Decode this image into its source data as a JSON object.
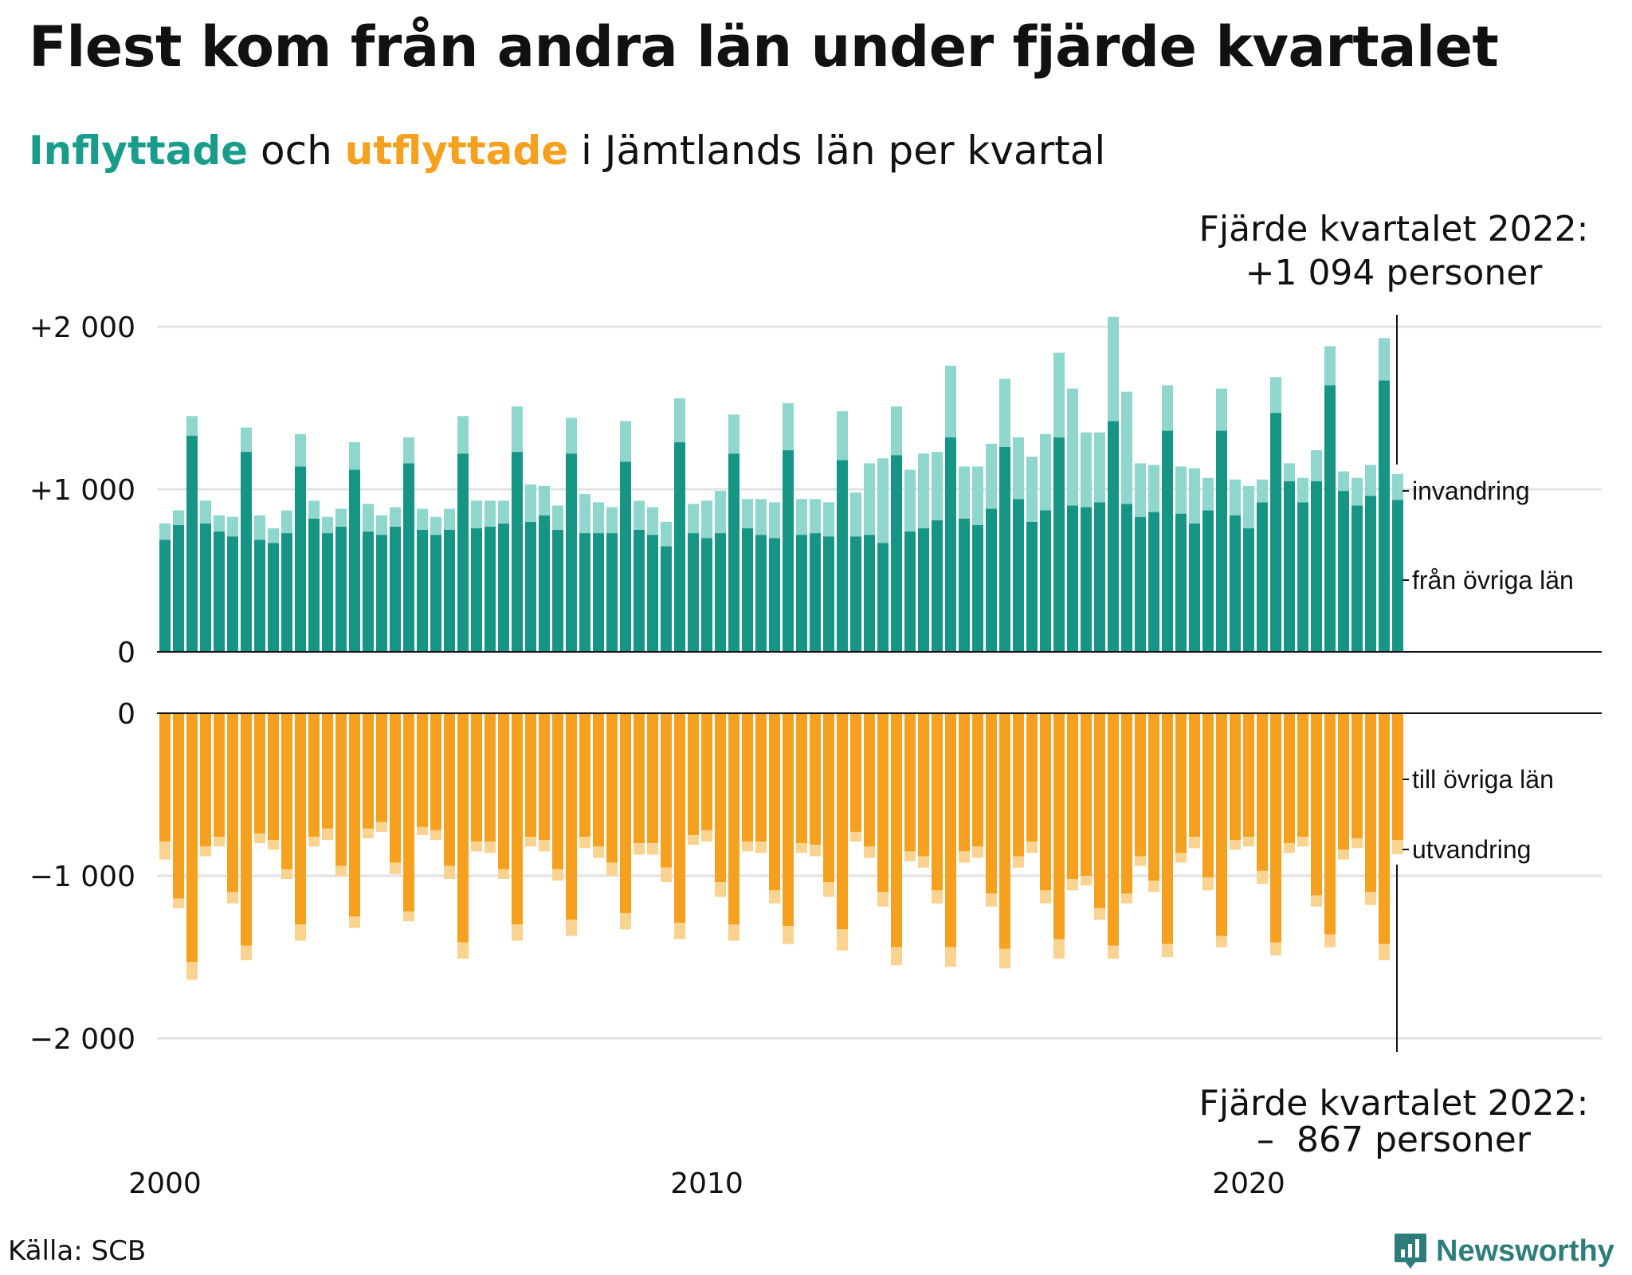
{
  "title": "Flest kom från andra län under fjärde kvartalet",
  "subtitle": {
    "part1": "Inflyttade",
    "part2": " och ",
    "part3": "utflyttade",
    "part4": " i Jämtlands län per kvartal"
  },
  "colors": {
    "in_dark": "#169585",
    "in_light": "#8fd6cc",
    "out_dark": "#f5a01f",
    "out_light": "#fbd391",
    "grid": "#e2e2e2",
    "axis": "#111111",
    "brand": "#2e7d7a"
  },
  "annotations": {
    "top_line1": "Fjärde kvartalet 2022:",
    "top_line2": "+1 094 personer",
    "bottom_line1": "Fjärde kvartalet 2022:",
    "bottom_line2": "–  867 personer"
  },
  "segment_labels": {
    "invandring": "invandring",
    "fran_ovriga": "från övriga län",
    "till_ovriga": "till övriga län",
    "utvandring": "utvandring"
  },
  "source": "Källa: SCB",
  "brand": {
    "name": "Newsworthy",
    "logo_icon": "newsworthy-bar-chart-icon"
  },
  "chart_data": {
    "type": "bar",
    "stacked": true,
    "period": "quarterly",
    "start": "2000 Q1",
    "end": "2022 Q4",
    "x_ticks": [
      "2000",
      "2010",
      "2020"
    ],
    "top_panel": {
      "y_ticks": [
        "+2 000",
        "+1 000",
        "0"
      ],
      "ylim": [
        0,
        2000
      ],
      "series": [
        {
          "name": "från övriga län",
          "values": [
            690,
            780,
            1330,
            790,
            740,
            710,
            1230,
            690,
            670,
            730,
            1140,
            820,
            730,
            770,
            1120,
            740,
            720,
            770,
            1160,
            750,
            720,
            750,
            1220,
            760,
            770,
            790,
            1230,
            800,
            840,
            750,
            1220,
            730,
            730,
            730,
            1170,
            750,
            720,
            650,
            1290,
            730,
            700,
            730,
            1220,
            760,
            720,
            700,
            1240,
            720,
            730,
            710,
            1180,
            710,
            720,
            670,
            1210,
            740,
            760,
            810,
            1320,
            820,
            780,
            880,
            1260,
            940,
            800,
            870,
            1320,
            900,
            890,
            920,
            1420,
            910,
            830,
            860,
            1360,
            850,
            790,
            870,
            1360,
            840,
            760,
            920,
            1470,
            1050,
            920,
            1050,
            1640,
            990,
            900,
            960,
            1670,
            934
          ]
        },
        {
          "name": "invandring",
          "values": [
            100,
            90,
            120,
            140,
            100,
            120,
            150,
            150,
            90,
            140,
            200,
            110,
            100,
            110,
            170,
            170,
            120,
            120,
            160,
            130,
            110,
            130,
            230,
            170,
            160,
            140,
            280,
            230,
            180,
            150,
            220,
            240,
            190,
            160,
            250,
            180,
            170,
            150,
            270,
            180,
            230,
            260,
            240,
            180,
            220,
            220,
            290,
            220,
            210,
            210,
            300,
            270,
            440,
            520,
            300,
            380,
            460,
            420,
            440,
            320,
            360,
            400,
            420,
            380,
            400,
            470,
            520,
            720,
            460,
            430,
            640,
            690,
            330,
            290,
            280,
            290,
            340,
            200,
            260,
            220,
            260,
            140,
            220,
            110,
            150,
            190,
            240,
            120,
            170,
            190,
            260,
            160
          ]
        }
      ]
    },
    "bottom_panel": {
      "y_ticks": [
        "0",
        "−1 000",
        "−2 000"
      ],
      "ylim": [
        -2000,
        0
      ],
      "series": [
        {
          "name": "till övriga län",
          "values": [
            -790,
            -1140,
            -1530,
            -820,
            -760,
            -1100,
            -1430,
            -740,
            -780,
            -960,
            -1300,
            -760,
            -710,
            -940,
            -1250,
            -710,
            -670,
            -920,
            -1220,
            -700,
            -720,
            -940,
            -1410,
            -790,
            -790,
            -960,
            -1300,
            -760,
            -780,
            -960,
            -1270,
            -760,
            -820,
            -920,
            -1230,
            -800,
            -800,
            -950,
            -1290,
            -750,
            -720,
            -1040,
            -1300,
            -790,
            -790,
            -1090,
            -1310,
            -800,
            -810,
            -1040,
            -1330,
            -730,
            -820,
            -1100,
            -1440,
            -850,
            -880,
            -1090,
            -1440,
            -850,
            -820,
            -1110,
            -1450,
            -880,
            -790,
            -1090,
            -1390,
            -1020,
            -1000,
            -1200,
            -1430,
            -1110,
            -880,
            -1030,
            -1420,
            -860,
            -760,
            -1010,
            -1370,
            -780,
            -760,
            -970,
            -1410,
            -800,
            -760,
            -1120,
            -1360,
            -840,
            -770,
            -1100,
            -1420,
            -780
          ]
        },
        {
          "name": "utvandring",
          "values": [
            -110,
            -60,
            -110,
            -60,
            -60,
            -70,
            -90,
            -60,
            -60,
            -60,
            -100,
            -60,
            -70,
            -60,
            -70,
            -60,
            -60,
            -70,
            -60,
            -50,
            -60,
            -80,
            -100,
            -60,
            -70,
            -60,
            -100,
            -60,
            -70,
            -70,
            -100,
            -70,
            -70,
            -80,
            -100,
            -70,
            -70,
            -90,
            -100,
            -60,
            -70,
            -90,
            -100,
            -60,
            -70,
            -80,
            -110,
            -60,
            -70,
            -90,
            -130,
            -60,
            -70,
            -90,
            -110,
            -60,
            -70,
            -80,
            -120,
            -70,
            -70,
            -80,
            -120,
            -70,
            -70,
            -80,
            -120,
            -70,
            -60,
            -70,
            -80,
            -60,
            -60,
            -70,
            -80,
            -60,
            -70,
            -80,
            -70,
            -60,
            -60,
            -80,
            -80,
            -60,
            -60,
            -70,
            -80,
            -60,
            -60,
            -80,
            -100,
            -87
          ]
        }
      ]
    }
  }
}
